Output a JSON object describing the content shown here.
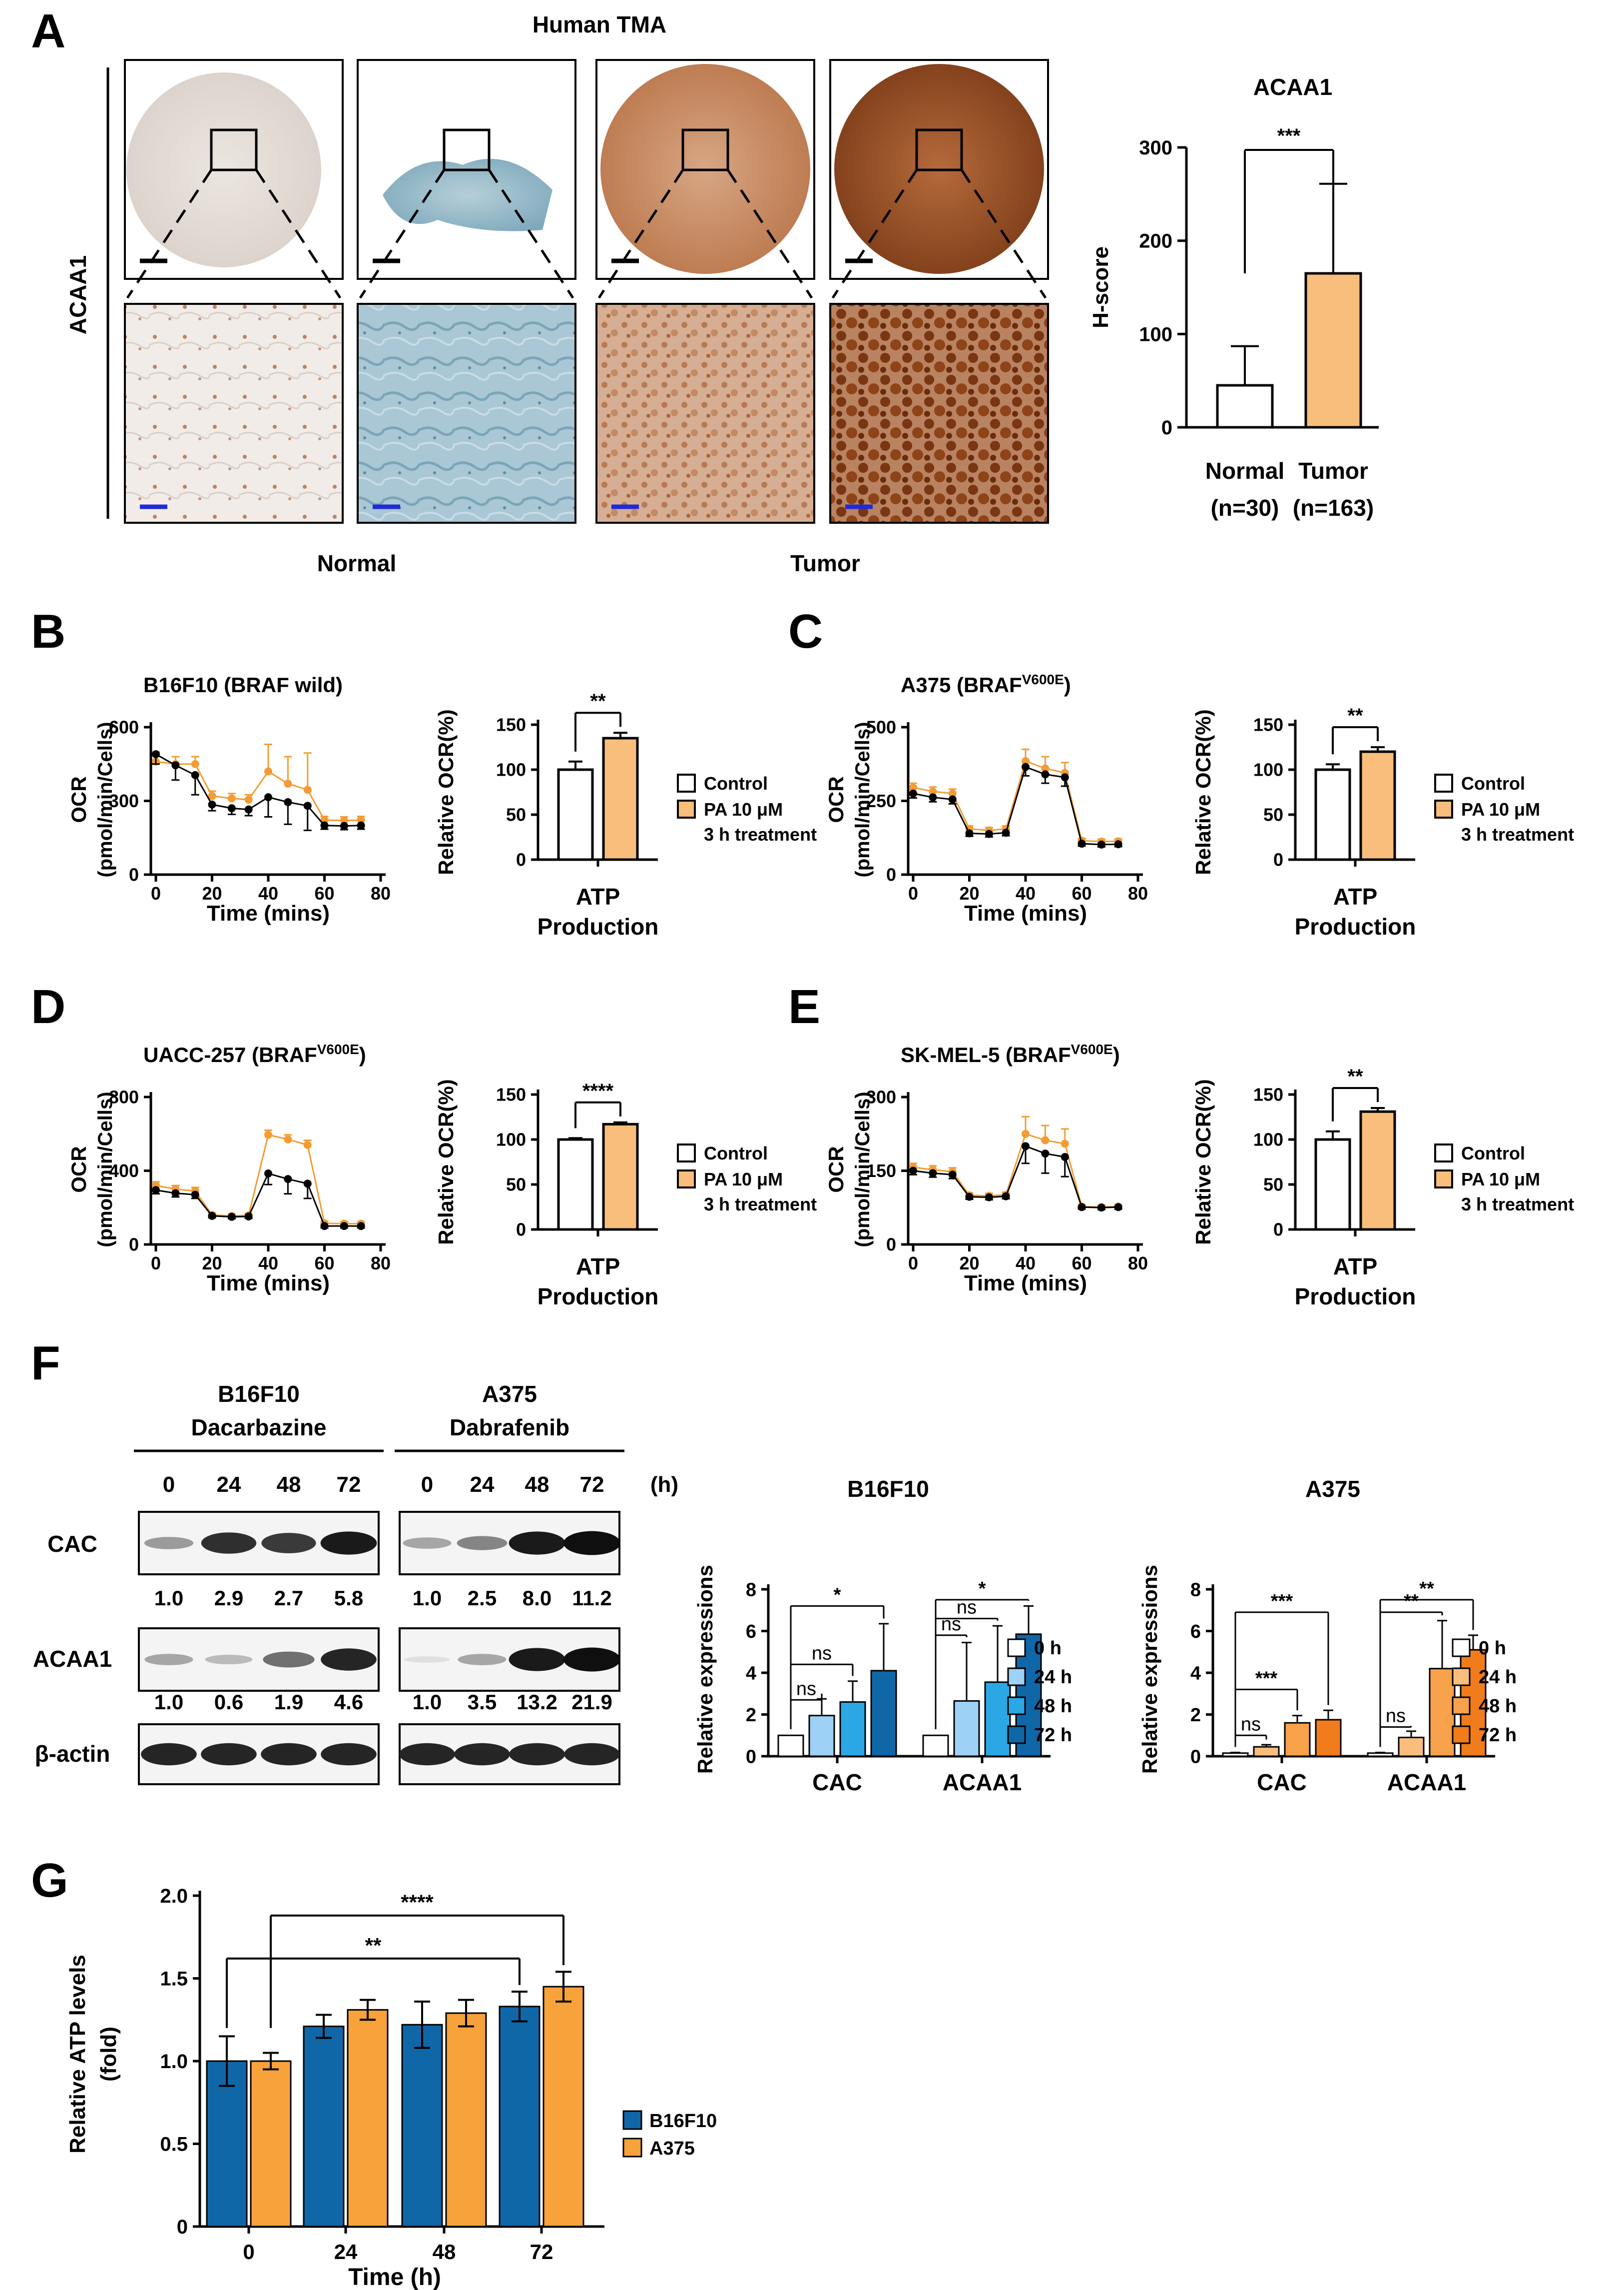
{
  "panel_letters": [
    "A",
    "B",
    "C",
    "D",
    "E",
    "F",
    "G"
  ],
  "panel_a": {
    "title": "Human TMA",
    "side_label": "ACAA1",
    "group_labels": [
      "Normal",
      "Tumor"
    ],
    "micrographs": [
      {
        "name": "normal-1",
        "tissue": "normal-light"
      },
      {
        "name": "normal-2",
        "tissue": "normal-blue"
      },
      {
        "name": "tumor-1",
        "tissue": "tumor-moderate"
      },
      {
        "name": "tumor-2",
        "tissue": "tumor-strong"
      }
    ]
  },
  "seahorse_legend": {
    "control": "Control",
    "pa_line1": "PA 10 μM",
    "pa_line2": "3 h treatment"
  },
  "colors": {
    "control_line": "#000000",
    "pa_line": "#F39C33",
    "pa_bar": "#F9BE7B",
    "b16_scale": [
      "#FFFFFF",
      "#9DD1F5",
      "#2BA7E6",
      "#1067A8"
    ],
    "a375_scale": [
      "#FFFFFF",
      "#F9BE7B",
      "#F7A14A",
      "#F07C1C"
    ],
    "blue": "#1067A8",
    "orange": "#F7A23A"
  },
  "chart_data": [
    {
      "id": "A",
      "type": "bar",
      "title": "ACAA1",
      "ylabel": "H-score",
      "ylim": [
        0,
        300
      ],
      "yticks": [
        0,
        100,
        200,
        300
      ],
      "categories": [
        {
          "l1": "Normal",
          "l2": "(n=30)"
        },
        {
          "l1": "Tumor",
          "l2": "(n=163)"
        }
      ],
      "values": [
        45,
        165
      ],
      "errors": [
        42,
        96
      ],
      "significance": "***"
    },
    {
      "id": "B",
      "type": "line",
      "title": "B16F10 (BRAF wild)",
      "title_sup": "",
      "xlabel": "Time (mins)",
      "ylabel_l1": "OCR",
      "ylabel_l2": "(pmol/min/Cells)",
      "xlim": [
        0,
        80
      ],
      "xticks": [
        0,
        20,
        40,
        60,
        80
      ],
      "ylim": [
        0,
        600
      ],
      "yticks": [
        0,
        300,
        600
      ],
      "x": [
        0,
        7,
        14,
        20,
        27,
        33,
        40,
        47,
        54,
        60,
        67,
        73
      ],
      "series": [
        {
          "name": "Control",
          "values": [
            490,
            445,
            405,
            285,
            270,
            265,
            315,
            295,
            280,
            200,
            198,
            200
          ],
          "errors": [
            40,
            60,
            80,
            25,
            25,
            25,
            80,
            90,
            100,
            15,
            15,
            15
          ]
        },
        {
          "name": "PA 10 μM",
          "values": [
            460,
            450,
            450,
            320,
            310,
            305,
            420,
            370,
            345,
            222,
            220,
            222
          ],
          "errors": [
            40,
            30,
            30,
            20,
            20,
            20,
            110,
            110,
            150,
            15,
            15,
            15
          ]
        }
      ],
      "bar": {
        "title_l1": "ATP",
        "title_l2": "Production",
        "ylabel": "Relative OCR(%)",
        "ylim": [
          0,
          150
        ],
        "yticks": [
          0,
          50,
          100,
          150
        ],
        "values": [
          100,
          135
        ],
        "errors": [
          9,
          6
        ],
        "significance": "**"
      }
    },
    {
      "id": "C",
      "type": "line",
      "title": "A375 (BRAF",
      "title_sup": "V600E",
      "xlabel": "Time (mins)",
      "ylabel_l1": "OCR",
      "ylabel_l2": "(pmol/min/Cells)",
      "xlim": [
        0,
        80
      ],
      "xticks": [
        0,
        20,
        40,
        60,
        80
      ],
      "ylim": [
        0,
        500
      ],
      "yticks": [
        0,
        250,
        500
      ],
      "x": [
        0,
        7,
        14,
        20,
        27,
        33,
        40,
        47,
        54,
        60,
        67,
        73
      ],
      "series": [
        {
          "name": "Control",
          "values": [
            275,
            262,
            255,
            140,
            138,
            142,
            365,
            340,
            330,
            105,
            102,
            103
          ],
          "errors": [
            15,
            15,
            15,
            10,
            10,
            10,
            30,
            30,
            30,
            8,
            8,
            8
          ]
        },
        {
          "name": "PA 10 μM",
          "values": [
            295,
            282,
            275,
            155,
            150,
            155,
            385,
            360,
            345,
            115,
            112,
            113
          ],
          "errors": [
            15,
            15,
            15,
            10,
            10,
            10,
            40,
            40,
            35,
            8,
            8,
            8
          ]
        }
      ],
      "bar": {
        "title_l1": "ATP",
        "title_l2": "Production",
        "ylabel": "Relative OCR(%)",
        "ylim": [
          0,
          150
        ],
        "yticks": [
          0,
          50,
          100,
          150
        ],
        "values": [
          100,
          120
        ],
        "errors": [
          6,
          5
        ],
        "significance": "**"
      }
    },
    {
      "id": "D",
      "type": "line",
      "title": "UACC-257 (BRAF",
      "title_sup": "V600E",
      "xlabel": "Time (mins)",
      "ylabel_l1": "OCR",
      "ylabel_l2": "(pmol/min/Cells)",
      "xlim": [
        0,
        80
      ],
      "xticks": [
        0,
        20,
        40,
        60,
        80
      ],
      "ylim": [
        0,
        800
      ],
      "yticks": [
        0,
        400,
        800
      ],
      "x": [
        0,
        7,
        14,
        20,
        27,
        33,
        40,
        47,
        54,
        60,
        67,
        73
      ],
      "series": [
        {
          "name": "Control",
          "values": [
            295,
            278,
            270,
            155,
            150,
            152,
            385,
            355,
            330,
            100,
            100,
            100
          ],
          "errors": [
            20,
            20,
            20,
            10,
            10,
            10,
            60,
            80,
            80,
            10,
            10,
            10
          ]
        },
        {
          "name": "PA 10 μM",
          "values": [
            320,
            300,
            290,
            160,
            155,
            158,
            595,
            570,
            540,
            115,
            113,
            113
          ],
          "errors": [
            20,
            20,
            20,
            10,
            10,
            10,
            25,
            25,
            25,
            10,
            10,
            10
          ]
        }
      ],
      "bar": {
        "title_l1": "ATP",
        "title_l2": "Production",
        "ylabel": "Relative OCR(%)",
        "ylim": [
          0,
          150
        ],
        "yticks": [
          0,
          50,
          100,
          150
        ],
        "values": [
          100,
          117
        ],
        "errors": [
          1.5,
          2
        ],
        "significance": "****"
      }
    },
    {
      "id": "E",
      "type": "line",
      "title": "SK-MEL-5 (BRAF",
      "title_sup": "V600E",
      "xlabel": "Time (mins)",
      "ylabel_l1": "OCR",
      "ylabel_l2": "(pmol/min/Cells)",
      "xlim": [
        0,
        80
      ],
      "xticks": [
        0,
        20,
        40,
        60,
        80
      ],
      "ylim": [
        0,
        300
      ],
      "yticks": [
        0,
        150,
        300
      ],
      "x": [
        0,
        7,
        14,
        20,
        27,
        33,
        40,
        47,
        54,
        60,
        67,
        73
      ],
      "series": [
        {
          "name": "Control",
          "values": [
            150,
            145,
            142,
            97,
            96,
            98,
            200,
            185,
            178,
            76,
            75,
            76
          ],
          "errors": [
            8,
            8,
            8,
            5,
            5,
            5,
            35,
            40,
            40,
            4,
            4,
            4
          ]
        },
        {
          "name": "PA 10 μM",
          "values": [
            157,
            152,
            148,
            100,
            99,
            101,
            225,
            212,
            205,
            77,
            76,
            77
          ],
          "errors": [
            8,
            8,
            8,
            5,
            5,
            5,
            35,
            30,
            30,
            4,
            4,
            4
          ]
        }
      ],
      "bar": {
        "title_l1": "ATP",
        "title_l2": "Production",
        "ylabel": "Relative OCR(%)",
        "ylim": [
          0,
          150
        ],
        "yticks": [
          0,
          50,
          100,
          150
        ],
        "values": [
          100,
          131
        ],
        "errors": [
          9,
          4
        ],
        "significance": "**"
      }
    },
    {
      "id": "F_blot",
      "type": "table",
      "groups": [
        {
          "line1": "B16F10",
          "line2": "Dacarbazine",
          "lanes": [
            "0",
            "24",
            "48",
            "72"
          ],
          "cac": [
            "1.0",
            "2.9",
            "2.7",
            "5.8"
          ],
          "acaa1": [
            "1.0",
            "0.6",
            "1.9",
            "4.6"
          ],
          "cac_int": [
            0.35,
            0.85,
            0.8,
            0.95
          ],
          "acaa1_int": [
            0.3,
            0.2,
            0.55,
            0.9
          ]
        },
        {
          "line1": "A375",
          "line2": "Dabrafenib",
          "lanes": [
            "0",
            "24",
            "48",
            "72"
          ],
          "cac": [
            "1.0",
            "2.5",
            "8.0",
            "11.2"
          ],
          "acaa1": [
            "1.0",
            "3.5",
            "13.2",
            "21.9"
          ],
          "cac_int": [
            0.3,
            0.45,
            0.95,
            1.0
          ],
          "acaa1_int": [
            0.03,
            0.3,
            0.95,
            1.0
          ]
        }
      ],
      "unit": "(h)",
      "rows": [
        "CAC",
        "ACAA1",
        "β-actin"
      ]
    },
    {
      "id": "F_B16F10",
      "type": "bar",
      "title": "B16F10",
      "ylabel": "Relative expressions",
      "ylim": [
        0,
        8
      ],
      "yticks": [
        0,
        2,
        4,
        6,
        8
      ],
      "categories": [
        "CAC",
        "ACAA1"
      ],
      "legend": [
        "0 h",
        "24 h",
        "48 h",
        "72 h"
      ],
      "series": [
        {
          "name": "0 h",
          "values": [
            1.0,
            1.0
          ],
          "errors": [
            0,
            0
          ]
        },
        {
          "name": "24 h",
          "values": [
            1.95,
            2.65
          ],
          "errors": [
            0.8,
            2.8
          ]
        },
        {
          "name": "48 h",
          "values": [
            2.6,
            3.55
          ],
          "errors": [
            1.0,
            2.7
          ]
        },
        {
          "name": "72 h",
          "values": [
            4.1,
            5.85
          ],
          "errors": [
            2.25,
            1.35
          ]
        }
      ],
      "significance": [
        {
          "cat": 0,
          "from": 0,
          "to": 1,
          "label": "ns",
          "y": 2.7
        },
        {
          "cat": 0,
          "from": 0,
          "to": 2,
          "label": "ns",
          "y": 4.4
        },
        {
          "cat": 0,
          "from": 0,
          "to": 3,
          "label": "*",
          "y": 7.2
        },
        {
          "cat": 1,
          "from": 0,
          "to": 1,
          "label": "ns",
          "y": 5.8
        },
        {
          "cat": 1,
          "from": 0,
          "to": 2,
          "label": "ns",
          "y": 6.6
        },
        {
          "cat": 1,
          "from": 0,
          "to": 3,
          "label": "*",
          "y": 7.5
        }
      ]
    },
    {
      "id": "F_A375",
      "type": "bar",
      "title": "A375",
      "ylabel": "Relative expressions",
      "ylim": [
        0,
        8
      ],
      "yticks": [
        0,
        2,
        4,
        6,
        8
      ],
      "categories": [
        "CAC",
        "ACAA1"
      ],
      "legend": [
        "0 h",
        "24 h",
        "48 h",
        "72 h"
      ],
      "series": [
        {
          "name": "0 h",
          "values": [
            0.15,
            0.15
          ],
          "errors": [
            0.03,
            0.03
          ]
        },
        {
          "name": "24 h",
          "values": [
            0.45,
            0.9
          ],
          "errors": [
            0.1,
            0.3
          ]
        },
        {
          "name": "48 h",
          "values": [
            1.6,
            4.2
          ],
          "errors": [
            0.35,
            2.3
          ]
        },
        {
          "name": "72 h",
          "values": [
            1.75,
            5.1
          ],
          "errors": [
            0.45,
            0.7
          ]
        }
      ],
      "significance": [
        {
          "cat": 0,
          "from": 0,
          "to": 1,
          "label": "ns",
          "y": 1.0
        },
        {
          "cat": 0,
          "from": 0,
          "to": 2,
          "label": "***",
          "y": 3.2
        },
        {
          "cat": 0,
          "from": 0,
          "to": 3,
          "label": "***",
          "y": 6.9
        },
        {
          "cat": 1,
          "from": 0,
          "to": 1,
          "label": "ns",
          "y": 1.4
        },
        {
          "cat": 1,
          "from": 0,
          "to": 2,
          "label": "**",
          "y": 6.9
        },
        {
          "cat": 1,
          "from": 0,
          "to": 3,
          "label": "**",
          "y": 7.5
        }
      ]
    },
    {
      "id": "G",
      "type": "bar",
      "title": "",
      "xlabel": "Time (h)",
      "ylabel_l1": "Relative ATP levels",
      "ylabel_l2": "(fold)",
      "ylim": [
        0,
        2.0
      ],
      "yticks": [
        "0",
        "0.5",
        "1.0",
        "1.5",
        "2.0"
      ],
      "categories": [
        "0",
        "24",
        "48",
        "72"
      ],
      "series": [
        {
          "name": "B16F10",
          "values": [
            1.0,
            1.21,
            1.22,
            1.33
          ],
          "errors": [
            0.15,
            0.07,
            0.14,
            0.09
          ]
        },
        {
          "name": "A375",
          "values": [
            1.0,
            1.31,
            1.29,
            1.45
          ],
          "errors": [
            0.05,
            0.06,
            0.08,
            0.09
          ]
        }
      ],
      "significance": [
        {
          "from_cat": 0,
          "to_cat": 3,
          "label": "**",
          "y": 1.62
        },
        {
          "from_cat": 0,
          "to_cat": 3,
          "label": "****",
          "y": 1.88
        }
      ]
    }
  ]
}
